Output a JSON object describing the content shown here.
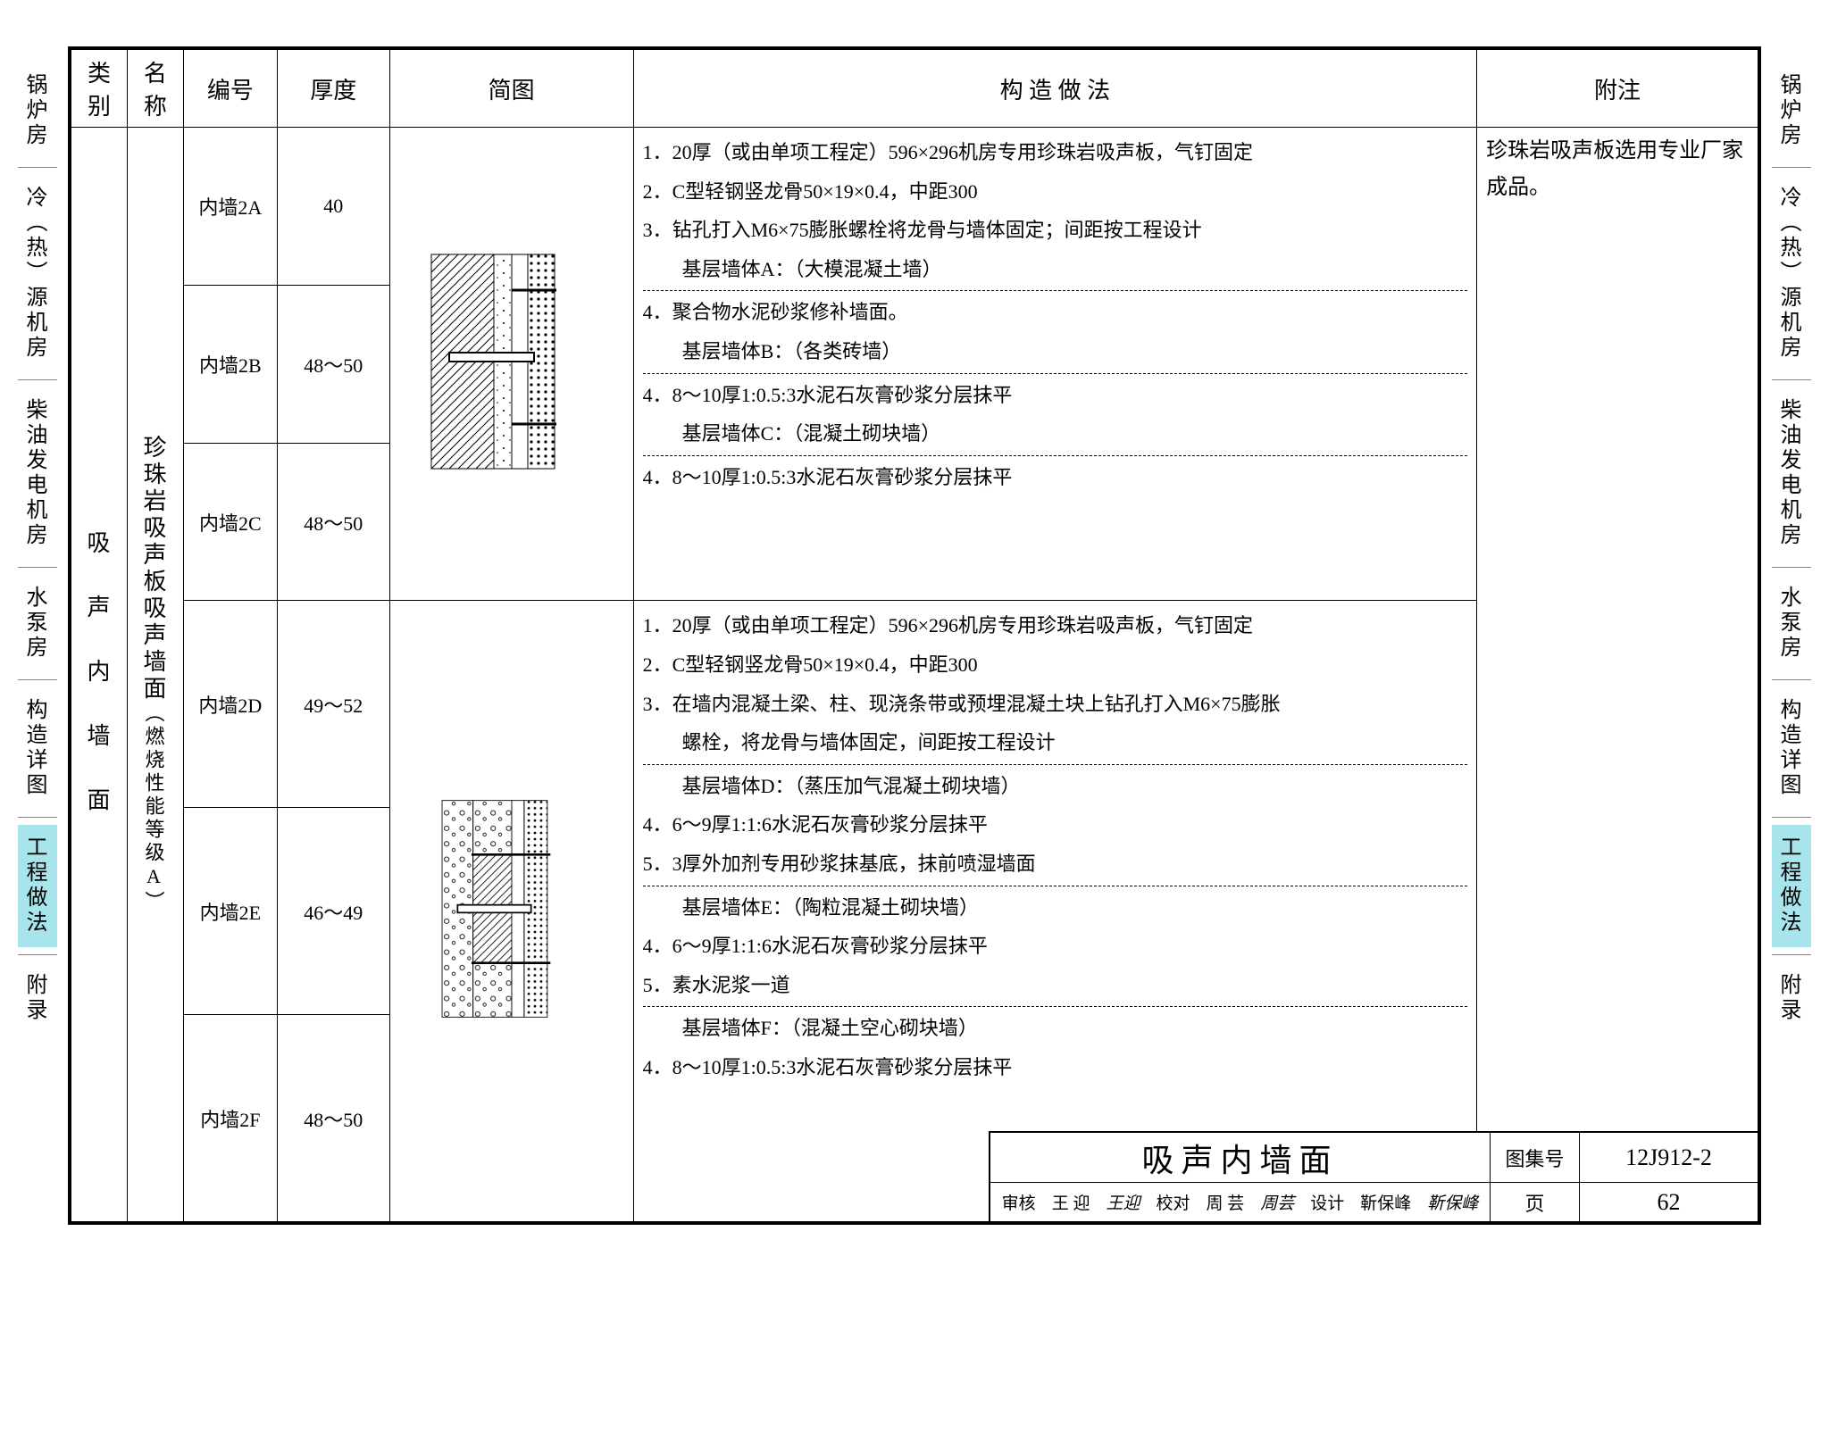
{
  "nav": {
    "items": [
      "锅炉房",
      "冷（热）源机房",
      "柴油发电机房",
      "水泵房",
      "构造详图",
      "工程做法",
      "附录"
    ],
    "active_index": 5
  },
  "headers": {
    "category": "类别",
    "name": "名称",
    "code": "编号",
    "thickness": "厚度",
    "diagram": "简图",
    "method": "构 造 做 法",
    "note": "附注"
  },
  "category_label": "吸　声　内　墙　面",
  "name_label_top": "珍珠岩吸声板吸声墙面",
  "name_label_bottom": "（燃烧性能等级A）",
  "rows_top": [
    {
      "code": "内墙2A",
      "thick": "40"
    },
    {
      "code": "内墙2B",
      "thick": "48～50"
    },
    {
      "code": "内墙2C",
      "thick": "48～50"
    }
  ],
  "rows_bottom": [
    {
      "code": "内墙2D",
      "thick": "49～52"
    },
    {
      "code": "内墙2E",
      "thick": "46～49"
    },
    {
      "code": "内墙2F",
      "thick": "48～50"
    }
  ],
  "method_top": [
    {
      "t": "1．20厚（或由单项工程定）596×296机房专用珍珠岩吸声板，气钉固定"
    },
    {
      "t": "2．C型轻钢竖龙骨50×19×0.4，中距300"
    },
    {
      "t": "3．钻孔打入M6×75膨胀螺栓将龙骨与墙体固定；间距按工程设计"
    },
    {
      "t": "　　基层墙体A：（大模混凝土墙）",
      "u": true
    },
    {
      "t": "4．聚合物水泥砂浆修补墙面。"
    },
    {
      "t": "　　基层墙体B：（各类砖墙）",
      "u": true
    },
    {
      "t": "4．8～10厚1:0.5:3水泥石灰膏砂浆分层抹平"
    },
    {
      "t": "　　基层墙体C：（混凝土砌块墙）",
      "u": true
    },
    {
      "t": "4．8～10厚1:0.5:3水泥石灰膏砂浆分层抹平"
    }
  ],
  "method_bottom": [
    {
      "t": "1．20厚（或由单项工程定）596×296机房专用珍珠岩吸声板，气钉固定"
    },
    {
      "t": "2．C型轻钢竖龙骨50×19×0.4，中距300"
    },
    {
      "t": "3．在墙内混凝土梁、柱、现浇条带或预埋混凝土块上钻孔打入M6×75膨胀"
    },
    {
      "t": "　　螺栓，将龙骨与墙体固定，间距按工程设计",
      "u": true
    },
    {
      "t": "　　基层墙体D：（蒸压加气混凝土砌块墙）"
    },
    {
      "t": "4．6～9厚1:1:6水泥石灰膏砂浆分层抹平"
    },
    {
      "t": "5．3厚外加剂专用砂浆抹基底，抹前喷湿墙面",
      "u": true
    },
    {
      "t": "　　基层墙体E：（陶粒混凝土砌块墙）"
    },
    {
      "t": "4．6～9厚1:1:6水泥石灰膏砂浆分层抹平"
    },
    {
      "t": "5．素水泥浆一道",
      "u": true
    },
    {
      "t": "　　基层墙体F：（混凝土空心砌块墙）"
    },
    {
      "t": "4．8～10厚1:0.5:3水泥石灰膏砂浆分层抹平"
    }
  ],
  "note_text": "珍珠岩吸声板选用专业厂家成品。",
  "titleblock": {
    "title": "吸声内墙面",
    "set_label": "图集号",
    "set_value": "12J912-2",
    "page_label": "页",
    "page_value": "62",
    "sig_审核": "审核",
    "sig_审核name": "王 迎",
    "sig_校对": "校对",
    "sig_校对name": "周 芸",
    "sig_设计": "设计",
    "sig_设计name": "靳保峰"
  },
  "colors": {
    "nav_active_bg": "#a8e4ec",
    "nav_sep": "#4aa0a8",
    "border": "#000000",
    "bg": "#ffffff"
  }
}
